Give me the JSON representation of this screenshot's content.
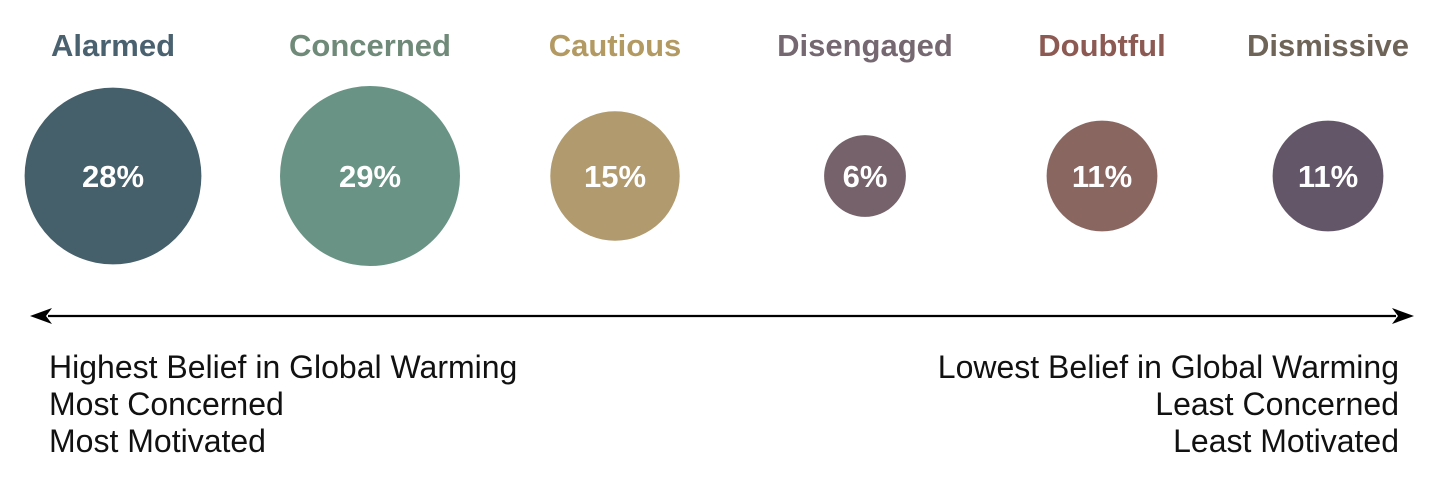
{
  "chart_data": {
    "type": "bubble",
    "segments": [
      {
        "label": "Alarmed",
        "value": 28,
        "value_label": "28%",
        "color": "#45606a",
        "label_color": "#4a6170"
      },
      {
        "label": "Concerned",
        "value": 29,
        "value_label": "29%",
        "color": "#699384",
        "label_color": "#6f8a78"
      },
      {
        "label": "Cautious",
        "value": 15,
        "value_label": "15%",
        "color": "#b09a6e",
        "label_color": "#b39962"
      },
      {
        "label": "Disengaged",
        "value": 6,
        "value_label": "6%",
        "color": "#76626a",
        "label_color": "#756870"
      },
      {
        "label": "Doubtful",
        "value": 11,
        "value_label": "11%",
        "color": "#8a6661",
        "label_color": "#8d5a53"
      },
      {
        "label": "Dismissive",
        "value": 11,
        "value_label": "11%",
        "color": "#635668",
        "label_color": "#6f6458"
      }
    ],
    "axis": {
      "arrow": "both",
      "left_labels": [
        "Highest Belief in Global Warming",
        "Most Concerned",
        "Most Motivated"
      ],
      "right_labels": [
        "Lowest Belief in Global Warming",
        "Least Concerned",
        "Least Motivated"
      ]
    }
  }
}
